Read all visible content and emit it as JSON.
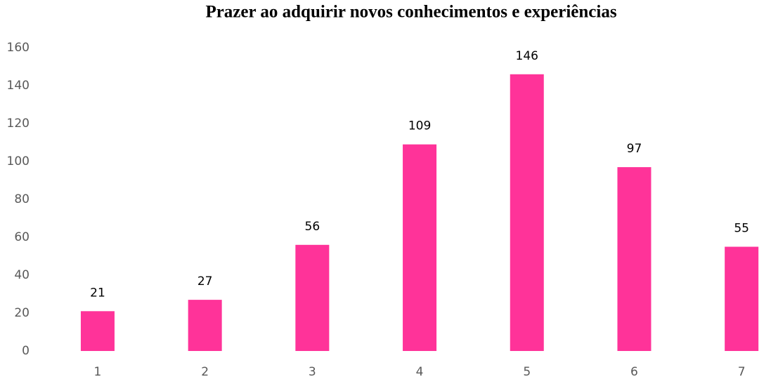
{
  "chart_data": {
    "type": "bar",
    "title": "Prazer ao adquirir novos conhecimentos e experiências",
    "categories": [
      "1",
      "2",
      "3",
      "4",
      "5",
      "6",
      "7"
    ],
    "values": [
      21,
      27,
      56,
      109,
      146,
      97,
      55
    ],
    "color": "#ff3399",
    "ylim": [
      0,
      160
    ],
    "yticks": [
      0,
      20,
      40,
      60,
      80,
      100,
      120,
      140,
      160
    ],
    "grid": false
  }
}
